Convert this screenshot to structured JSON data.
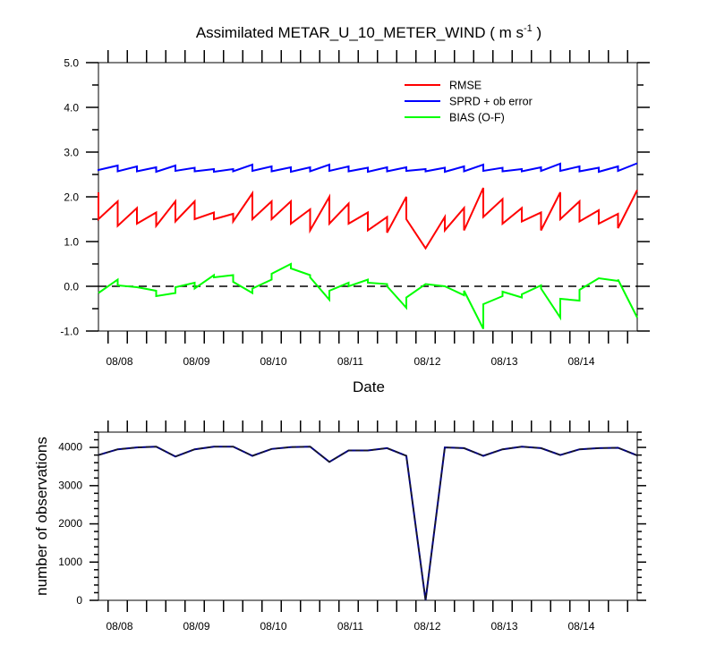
{
  "chart_data": [
    {
      "type": "line",
      "title": "Assimilated METAR_U_10_METER_WIND ( m s",
      "title_superscript": "-1",
      "title_end": " )",
      "xlabel": "Date",
      "ylabel": "",
      "x_tick_labels": [
        "08/08",
        "08/09",
        "08/10",
        "08/11",
        "08/12",
        "08/13",
        "08/14"
      ],
      "y_tick_labels": [
        "5.0",
        "4.0",
        "3.0",
        "2.0",
        "1.0",
        "0.0",
        "-1.0"
      ],
      "ylim": [
        -1.0,
        5.0
      ],
      "xlim_days": [
        7.875,
        14.875
      ],
      "reference_line": {
        "y": 0.0,
        "style": "dashed",
        "color": "#000000"
      },
      "grid": false,
      "legend_position": "top-right",
      "series": [
        {
          "name": "RMSE",
          "color": "#ff0000",
          "x": [
            7.875,
            7.875,
            8.125,
            8.125,
            8.375,
            8.375,
            8.625,
            8.625,
            8.875,
            8.875,
            9.125,
            9.125,
            9.375,
            9.375,
            9.625,
            9.625,
            9.875,
            9.875,
            10.125,
            10.125,
            10.375,
            10.375,
            10.625,
            10.625,
            10.875,
            10.875,
            11.125,
            11.125,
            11.375,
            11.375,
            11.625,
            11.625,
            11.875,
            11.875,
            12.125,
            12.375,
            12.375,
            12.625,
            12.625,
            12.875,
            12.875,
            13.125,
            13.125,
            13.375,
            13.375,
            13.625,
            13.625,
            13.875,
            13.875,
            14.125,
            14.125,
            14.375,
            14.375,
            14.625,
            14.625,
            14.875
          ],
          "y": [
            2.1,
            1.5,
            1.9,
            1.35,
            1.75,
            1.4,
            1.65,
            1.35,
            1.9,
            1.45,
            1.9,
            1.5,
            1.65,
            1.5,
            1.62,
            1.45,
            2.08,
            1.5,
            1.9,
            1.5,
            1.9,
            1.4,
            1.72,
            1.25,
            2.0,
            1.4,
            1.85,
            1.4,
            1.65,
            1.25,
            1.55,
            1.2,
            2.0,
            1.5,
            0.85,
            1.55,
            1.25,
            1.75,
            1.25,
            2.2,
            1.55,
            1.95,
            1.4,
            1.75,
            1.45,
            1.65,
            1.25,
            2.1,
            1.5,
            1.9,
            1.45,
            1.7,
            1.4,
            1.62,
            1.3,
            2.15
          ]
        },
        {
          "name": "SPRD + ob error",
          "color": "#0000ff",
          "x": [
            7.875,
            7.875,
            8.125,
            8.125,
            8.375,
            8.375,
            8.625,
            8.625,
            8.875,
            8.875,
            9.125,
            9.125,
            9.375,
            9.375,
            9.625,
            9.625,
            9.875,
            9.875,
            10.125,
            10.125,
            10.375,
            10.375,
            10.625,
            10.625,
            10.875,
            10.875,
            11.125,
            11.125,
            11.375,
            11.375,
            11.625,
            11.625,
            11.875,
            11.875,
            12.125,
            12.125,
            12.375,
            12.375,
            12.625,
            12.625,
            12.875,
            12.875,
            13.125,
            13.125,
            13.375,
            13.375,
            13.625,
            13.625,
            13.875,
            13.875,
            14.125,
            14.125,
            14.375,
            14.375,
            14.625,
            14.625,
            14.875
          ],
          "y": [
            2.62,
            2.6,
            2.7,
            2.57,
            2.68,
            2.57,
            2.66,
            2.56,
            2.7,
            2.58,
            2.65,
            2.57,
            2.62,
            2.56,
            2.62,
            2.57,
            2.72,
            2.58,
            2.68,
            2.57,
            2.66,
            2.56,
            2.66,
            2.57,
            2.72,
            2.58,
            2.68,
            2.57,
            2.65,
            2.56,
            2.66,
            2.57,
            2.66,
            2.58,
            2.62,
            2.57,
            2.65,
            2.56,
            2.68,
            2.57,
            2.72,
            2.58,
            2.65,
            2.57,
            2.62,
            2.57,
            2.66,
            2.58,
            2.74,
            2.58,
            2.68,
            2.57,
            2.65,
            2.56,
            2.68,
            2.58,
            2.75
          ]
        },
        {
          "name": "BIAS (O-F)",
          "color": "#00ff00",
          "x": [
            7.875,
            8.125,
            8.125,
            8.375,
            8.625,
            8.625,
            8.875,
            8.875,
            9.125,
            9.125,
            9.375,
            9.375,
            9.625,
            9.625,
            9.875,
            9.875,
            10.125,
            10.125,
            10.375,
            10.375,
            10.625,
            10.625,
            10.875,
            10.875,
            11.125,
            11.125,
            11.375,
            11.375,
            11.625,
            11.625,
            11.875,
            11.875,
            12.125,
            12.375,
            12.625,
            12.625,
            12.875,
            12.875,
            13.125,
            13.125,
            13.375,
            13.375,
            13.625,
            13.625,
            13.875,
            13.875,
            14.125,
            14.125,
            14.375,
            14.375,
            14.625,
            14.625,
            14.875
          ],
          "y": [
            -0.15,
            0.15,
            0.02,
            -0.02,
            -0.1,
            -0.22,
            -0.15,
            -0.02,
            0.08,
            -0.05,
            0.25,
            0.2,
            0.25,
            0.1,
            -0.15,
            -0.05,
            0.15,
            0.28,
            0.5,
            0.4,
            0.25,
            0.2,
            -0.3,
            -0.1,
            0.08,
            0.0,
            0.15,
            0.08,
            0.05,
            0.0,
            -0.48,
            -0.25,
            0.05,
            0.0,
            -0.2,
            -0.1,
            -0.95,
            -0.4,
            -0.22,
            -0.12,
            -0.25,
            -0.18,
            0.02,
            -0.05,
            -0.7,
            -0.28,
            -0.32,
            -0.08,
            0.18,
            0.18,
            0.12,
            0.15,
            -0.7
          ]
        }
      ]
    },
    {
      "type": "line",
      "xlabel": "",
      "ylabel": "number of observations",
      "x_tick_labels": [
        "08/08",
        "08/09",
        "08/10",
        "08/11",
        "08/12",
        "08/13",
        "08/14"
      ],
      "y_tick_labels": [
        "4000",
        "3000",
        "2000",
        "1000",
        "0"
      ],
      "ylim": [
        0,
        4400
      ],
      "xlim_days": [
        7.875,
        14.875
      ],
      "grid": false,
      "series": [
        {
          "color": "#000080",
          "style": "solid+dashed",
          "x": [
            7.875,
            8.125,
            8.375,
            8.625,
            8.875,
            9.125,
            9.375,
            9.625,
            9.875,
            10.125,
            10.375,
            10.625,
            10.875,
            11.125,
            11.375,
            11.625,
            11.875,
            12.125,
            12.375,
            12.625,
            12.875,
            13.125,
            13.375,
            13.625,
            13.875,
            14.125,
            14.375,
            14.625,
            14.875
          ],
          "y": [
            3800,
            3950,
            4000,
            4020,
            3760,
            3950,
            4020,
            4020,
            3780,
            3960,
            4010,
            4020,
            3620,
            3920,
            3920,
            3980,
            3780,
            0,
            4000,
            3980,
            3780,
            3950,
            4020,
            3980,
            3800,
            3950,
            3980,
            3990,
            3790
          ]
        }
      ]
    }
  ]
}
